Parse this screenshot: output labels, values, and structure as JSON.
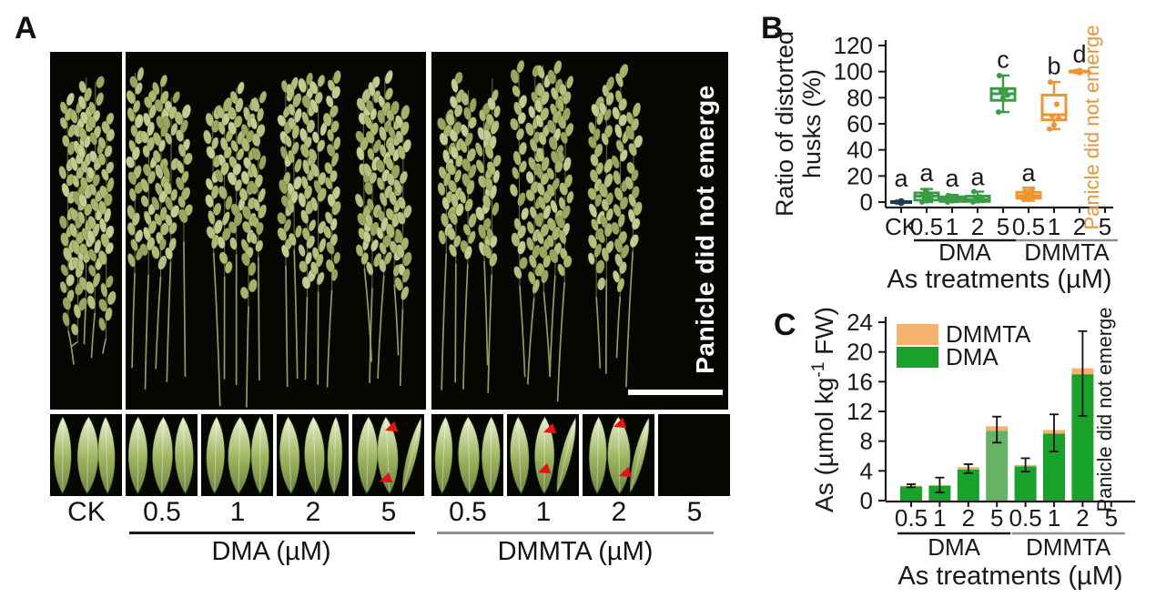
{
  "panel_a": {
    "label": "A",
    "vertical_text": "Panicle did not emerge",
    "treatments": [
      "CK",
      "0.5",
      "1",
      "2",
      "5",
      "0.5",
      "1",
      "2",
      "5"
    ],
    "dma_group_label": "DMA (µM)",
    "dmmta_group_label": "DMMTA (µM)",
    "arrow_tiles": {
      "4": 2,
      "6": 2,
      "7": 2
    },
    "colors": {
      "photo_bg": "#060603",
      "husk_light": "#eaf0cf",
      "husk_mid": "#9db35f",
      "husk_dark": "#6d8440",
      "arrow_red": "#e51313",
      "scalebar": "#ffffff",
      "text_white": "#ffffff",
      "dma_line": "#1a1a1a",
      "dmmta_line": "#8e8e8e"
    }
  },
  "panel_b_label": "B",
  "panel_c_label": "C",
  "chart_data": [
    {
      "panel": "B",
      "type": "boxplot",
      "ylabel_lines": [
        "Ratio of distorted",
        "husks (%)"
      ],
      "xlabel": "As treatments (µM)",
      "ylim": [
        0,
        120
      ],
      "yticks": [
        0,
        20,
        40,
        60,
        80,
        100,
        120
      ],
      "categories": [
        "CK",
        "0.5",
        "1",
        "2",
        "5",
        "0.5",
        "1",
        "2",
        "5"
      ],
      "groups": [
        {
          "label": "DMA",
          "from": 1,
          "to": 4,
          "line_color": "#1a1a1a"
        },
        {
          "label": "DMMTA",
          "from": 5,
          "to": 8,
          "line_color": "#8e8e8e"
        }
      ],
      "no_data_note": {
        "index": 8,
        "text": "Panicle did not emerge",
        "color": "#e8953b"
      },
      "boxes": [
        {
          "category": "CK",
          "color": "#1d3d56",
          "letter": "a",
          "letter_v": 12,
          "lo": 0,
          "q1": 0,
          "median": 0,
          "q3": 0,
          "hi": 0,
          "points": [
            0
          ]
        },
        {
          "category": "0.5",
          "color": "#3b9b45",
          "letter": "a",
          "letter_v": 16,
          "lo": 0,
          "q1": 1.5,
          "median": 4.5,
          "q3": 7,
          "hi": 10,
          "points": [
            0,
            1,
            2,
            3,
            4,
            5,
            6,
            7,
            9
          ]
        },
        {
          "category": "1",
          "color": "#3b9b45",
          "letter": "a",
          "letter_v": 12,
          "lo": 0,
          "q1": 0.5,
          "median": 2,
          "q3": 4,
          "hi": 5.5,
          "points": [
            0,
            1,
            2,
            3,
            4,
            5
          ]
        },
        {
          "category": "2",
          "color": "#3b9b45",
          "letter": "a",
          "letter_v": 13,
          "lo": 0,
          "q1": 0.5,
          "median": 2,
          "q3": 4.5,
          "hi": 8,
          "points": [
            0,
            1,
            2,
            3,
            4,
            8
          ]
        },
        {
          "category": "5",
          "color": "#3b9b45",
          "letter": "c",
          "letter_v": 103,
          "lo": 69,
          "q1": 78,
          "median": 83,
          "q3": 87,
          "hi": 97,
          "points": [
            69,
            80,
            82,
            85,
            86,
            97
          ]
        },
        {
          "category": "0.5",
          "color": "#ee9433",
          "letter": "a",
          "letter_v": 16,
          "lo": 1,
          "q1": 3,
          "median": 5,
          "q3": 7.5,
          "hi": 11,
          "points": [
            2,
            3,
            4,
            5,
            6,
            8,
            10
          ]
        },
        {
          "category": "1",
          "color": "#ee9433",
          "letter": "b",
          "letter_v": 98,
          "lo": 56,
          "q1": 63,
          "median": 67,
          "q3": 82,
          "hi": 92,
          "points": [
            56,
            59,
            64,
            66,
            75,
            92
          ]
        },
        {
          "category": "2",
          "color": "#ee9433",
          "letter": "d",
          "letter_v": 107,
          "lo": 99,
          "q1": 99.5,
          "median": 100,
          "q3": 100.5,
          "hi": 101,
          "points": [
            100
          ]
        },
        {
          "category": "5",
          "color": "#ee9433",
          "letter": "",
          "letter_v": null,
          "lo": null,
          "q1": null,
          "median": null,
          "q3": null,
          "hi": null,
          "points": []
        }
      ]
    },
    {
      "panel": "C",
      "type": "stacked-bar",
      "ylabel_parts": [
        "As (µmol kg",
        "-1",
        " FW)"
      ],
      "xlabel": "As treatments (µM)",
      "ylim": [
        0,
        24
      ],
      "yticks": [
        0,
        4,
        8,
        12,
        16,
        20,
        24
      ],
      "categories": [
        "0.5",
        "1",
        "2",
        "5",
        "0.5",
        "1",
        "2",
        "5"
      ],
      "groups": [
        {
          "label": "DMA",
          "from": 0,
          "to": 3,
          "line_color": "#1a1a1a"
        },
        {
          "label": "DMMTA",
          "from": 4,
          "to": 7,
          "line_color": "#8e8e8e"
        }
      ],
      "legend": [
        {
          "name": "DMMTA",
          "color": "#f6b26d"
        },
        {
          "name": "DMA",
          "color": "#18a12b"
        }
      ],
      "series": {
        "dma": [
          1.9,
          2.0,
          4.2,
          9.4,
          4.6,
          9.0,
          17.0,
          null
        ],
        "dmmta": [
          0.1,
          0.1,
          0.3,
          0.6,
          0.2,
          0.5,
          0.8,
          null
        ]
      },
      "bar_color_override": {
        "3": "#66b266"
      },
      "err_lo": [
        0.2,
        1.0,
        0.8,
        2.2,
        0.9,
        2.9,
        6.4,
        null
      ],
      "err_hi": [
        0.2,
        1.0,
        0.4,
        1.3,
        0.9,
        2.1,
        5.0,
        null
      ],
      "no_data_note": {
        "index": 7,
        "text": "Panicle did not emerge",
        "color": "#1a1a1a"
      }
    }
  ]
}
